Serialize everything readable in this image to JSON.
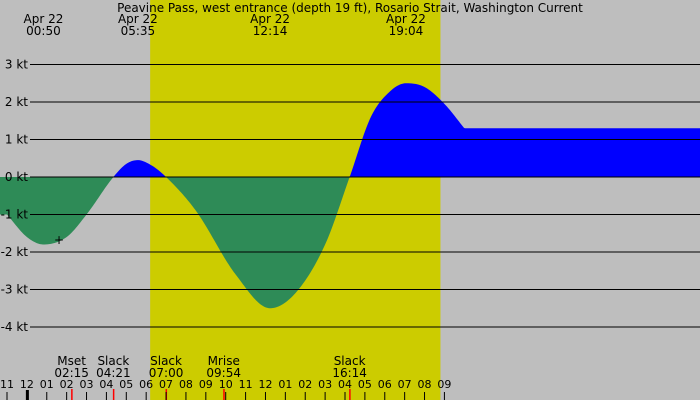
{
  "chart_data": {
    "type": "area",
    "title": "Peavine Pass, west entrance (depth 19 ft), Rosario Strait, Washington Current",
    "unit": "kt",
    "y_ticks": [
      3,
      2,
      1,
      0,
      -1,
      -2,
      -3,
      -4
    ],
    "y_tick_labels": [
      "3 kt",
      "2 kt",
      "1 kt",
      "0 kt",
      "-1 kt",
      "-2 kt",
      "-3 kt",
      "-4 kt"
    ],
    "ylim": [
      -4.5,
      3.5
    ],
    "x_range_hours": [
      -1,
      33
    ],
    "hour_labels": [
      "11",
      "12",
      "01",
      "02",
      "03",
      "04",
      "05",
      "06",
      "07",
      "08",
      "09",
      "10",
      "11",
      "12",
      "01",
      "02",
      "03",
      "04",
      "05",
      "06",
      "07",
      "08",
      "09"
    ],
    "daylight_hours": [
      6.2,
      20.8
    ],
    "colors": {
      "night": "#bebebe",
      "day": "#cccc00",
      "flood": "#0000ff",
      "ebb": "#2e8b57",
      "grid": "#000000"
    },
    "top_events": [
      {
        "date": "Apr 22",
        "time": "00:50",
        "hour": 0.833
      },
      {
        "date": "Apr 22",
        "time": "05:35",
        "hour": 5.583
      },
      {
        "date": "Apr 22",
        "time": "12:14",
        "hour": 12.233
      },
      {
        "date": "Apr 22",
        "time": "19:04",
        "hour": 19.067
      }
    ],
    "bottom_events": [
      {
        "name": "Mset",
        "time": "02:15",
        "hour": 2.25
      },
      {
        "name": "Slack",
        "time": "04:21",
        "hour": 4.35
      },
      {
        "name": "Slack",
        "time": "07:00",
        "hour": 7.0
      },
      {
        "name": "Mrise",
        "time": "09:54",
        "hour": 9.9
      },
      {
        "name": "Slack",
        "time": "16:14",
        "hour": 16.233
      }
    ],
    "series": [
      {
        "x": [
          -1,
          0,
          0.833,
          2,
          3,
          4.35,
          5.0,
          5.583,
          6.3,
          7.0,
          8.5,
          10.5,
          12.233,
          13.5,
          15.0,
          16.233,
          17.3,
          18.3,
          19.067,
          20.0,
          21.0,
          22.0
        ],
        "y": [
          -1.0,
          -1.6,
          -1.8,
          -1.6,
          -1.0,
          0.0,
          0.35,
          0.45,
          0.3,
          0.0,
          -0.9,
          -2.6,
          -3.5,
          -3.1,
          -1.8,
          0.0,
          1.6,
          2.3,
          2.5,
          2.4,
          1.95,
          1.3
        ]
      }
    ],
    "marker": {
      "symbol": "+",
      "hour": 1.62,
      "value": -1.65
    }
  }
}
